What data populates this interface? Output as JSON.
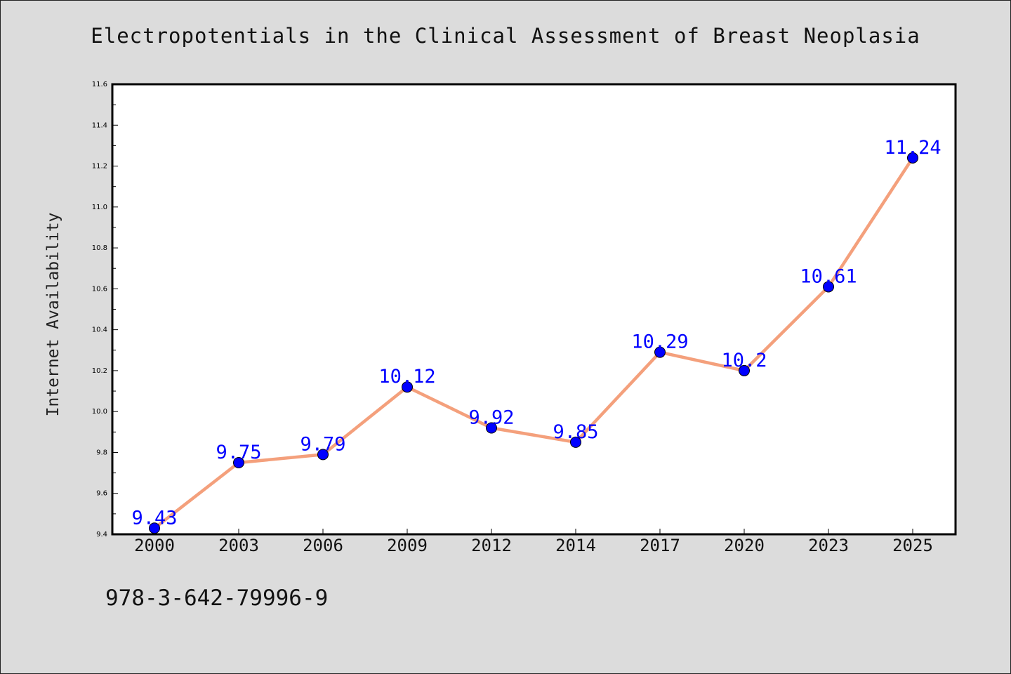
{
  "chart_data": {
    "type": "line",
    "title": "Electropotentials in the Clinical Assessment of Breast Neoplasia",
    "xlabel": "",
    "ylabel": "Internet Availability",
    "categories": [
      "2000",
      "2003",
      "2006",
      "2009",
      "2012",
      "2014",
      "2017",
      "2020",
      "2023",
      "2025"
    ],
    "series": [
      {
        "values": [
          9.43,
          9.75,
          9.79,
          10.12,
          9.92,
          9.85,
          10.29,
          10.2,
          10.61,
          11.24
        ],
        "labels": [
          "9.43",
          "9.75",
          "9.79",
          "10.12",
          "9.92",
          "9.85",
          "10.29",
          "10.2",
          "10.61",
          "11.24"
        ],
        "line_color": "#f4a07c",
        "marker_color": "#0000ff"
      }
    ],
    "ylim": [
      9.4,
      11.6
    ],
    "yticks": [
      "9.4",
      "9.6",
      "9.8",
      "10.0",
      "10.2",
      "10.4",
      "10.6",
      "10.8",
      "11.0",
      "11.2",
      "11.4",
      "11.6"
    ],
    "grid": false,
    "legend": "none"
  },
  "footer": {
    "isbn": "978-3-642-79996-9"
  },
  "colors": {
    "background": "#dcdcdc",
    "plot_background": "#ffffff",
    "label_color": "#0000ff"
  }
}
